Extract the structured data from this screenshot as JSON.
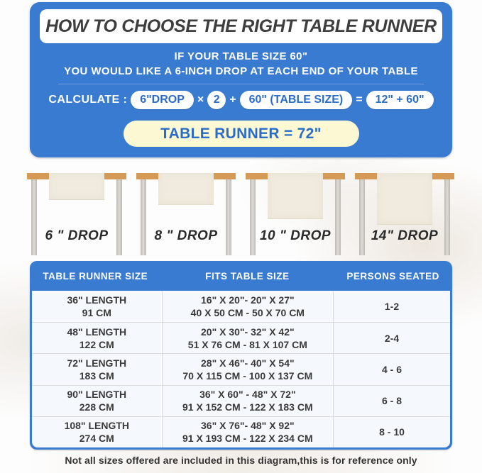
{
  "header": {
    "title": "HOW TO CHOOSE THE RIGHT TABLE RUNNER",
    "line1": "IF YOUR TABLE SIZE 60\"",
    "line2": "YOU WOULD LIKE A 6-INCH DROP AT EACH END OF YOUR TABLE"
  },
  "calculate": {
    "label": "CALCULATE :",
    "drop_pill": "6\"DROP",
    "times": "×",
    "multiplier": "2",
    "plus": "+",
    "table_size_pill": "60\" (TABLE SIZE)",
    "equals": "=",
    "sum_pill": "12\" + 60\"",
    "result": "TABLE RUNNER = 72\""
  },
  "diagram": {
    "tables": [
      {
        "label": "6 \" DROP",
        "drop_inches": 6
      },
      {
        "label": "8 \" DROP",
        "drop_inches": 8
      },
      {
        "label": "10 \" DROP",
        "drop_inches": 10
      },
      {
        "label": "14\" DROP",
        "drop_inches": 14
      }
    ]
  },
  "size_table": {
    "headers": [
      "TABLE RUNNER SIZE",
      "FITS TABLE SIZE",
      "PERSONS SEATED"
    ],
    "rows": [
      {
        "size1": "36\" LENGTH",
        "size2": "91 CM",
        "fits1": "16\" X 20\"- 20\" X 27\"",
        "fits2": "40 X 50 CM - 50 X 70 CM",
        "persons": "1-2"
      },
      {
        "size1": "48\" LENGTH",
        "size2": "122 CM",
        "fits1": "20\" X 30\"- 32\" X 42\"",
        "fits2": "51 X 76 CM - 81 X 107 CM",
        "persons": "2-4"
      },
      {
        "size1": "72\" LENGTH",
        "size2": "183 CM",
        "fits1": "28\" X 46\"- 40\" X 54\"",
        "fits2": "70 X 115 CM - 100 X 137 CM",
        "persons": "4 - 6"
      },
      {
        "size1": "90\" LENGTH",
        "size2": "228 CM",
        "fits1": "36\" X 60\" - 48\" X 72\"",
        "fits2": "91 X 152 CM - 122 X 183 CM",
        "persons": "6 - 8"
      },
      {
        "size1": "108\" LENGTH",
        "size2": "274 CM",
        "fits1": "36\" X 76\"- 48\" X 92\"",
        "fits2": "91 X 193 CM - 122 X 234 CM",
        "persons": "8 - 10"
      }
    ]
  },
  "footer_note": "Not all sizes offered are included in this diagram,this is for reference only",
  "colors": {
    "panel_blue": "#3A7BD2",
    "pill_text_blue": "#2B6CC8",
    "result_cream": "#FBF8D3",
    "tabletop_wood": "#D59A55",
    "runner_cream": "#F0EBDE",
    "leg_gray": "#C9C5C0",
    "title_text": "#3E3E3E"
  }
}
